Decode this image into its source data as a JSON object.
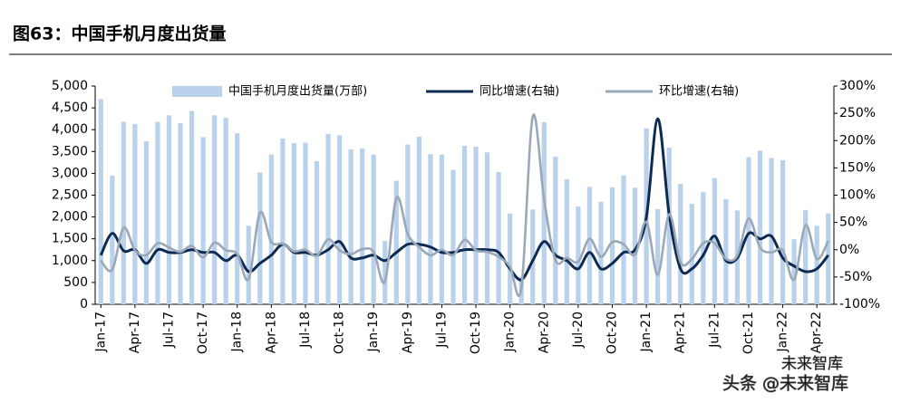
{
  "chart_data": {
    "type": "bar_line",
    "title": "图63：中国手机月度出货量",
    "categories": [
      "Jan-17",
      null,
      null,
      "Apr-17",
      null,
      null,
      "Jul-17",
      null,
      null,
      "Oct-17",
      null,
      null,
      "Jan-18",
      null,
      null,
      "Apr-18",
      null,
      null,
      "Jul-18",
      null,
      null,
      "Oct-18",
      null,
      null,
      "Jan-19",
      null,
      null,
      "Apr-19",
      null,
      null,
      "Jul-19",
      null,
      null,
      "Oct-19",
      null,
      null,
      "Jan-20",
      null,
      null,
      "Apr-20",
      null,
      null,
      "Jul-20",
      null,
      null,
      "Oct-20",
      null,
      null,
      "Jan-21",
      null,
      null,
      "Apr-21",
      null,
      null,
      "Jul-21",
      null,
      null,
      "Oct-21",
      null,
      null,
      "Jan-22",
      null,
      null,
      "Apr-22",
      null
    ],
    "series": [
      {
        "name": "中国手机月度出货量(万部)",
        "kind": "bar",
        "color": "#b9d1ea",
        "values": [
          4700,
          2950,
          4180,
          4130,
          3730,
          4180,
          4330,
          4150,
          4430,
          3830,
          4330,
          4270,
          3920,
          1800,
          3020,
          3430,
          3800,
          3690,
          3700,
          3280,
          3900,
          3870,
          3550,
          3570,
          3430,
          1450,
          2830,
          3660,
          3840,
          3440,
          3430,
          3080,
          3630,
          3610,
          3480,
          3030,
          2080,
          630,
          2170,
          4170,
          3380,
          2860,
          2240,
          2690,
          2350,
          2680,
          2950,
          2670,
          4030,
          2180,
          3590,
          2760,
          2300,
          2570,
          2890,
          2410,
          2150,
          3370,
          3520,
          3350,
          3300,
          1490,
          2160,
          1800,
          2080
        ]
      },
      {
        "name": "同比增速(右轴)",
        "kind": "line",
        "axis": "y2",
        "color": "#0d2b52",
        "values": [
          -10,
          30,
          -2,
          0,
          -25,
          0,
          -5,
          -5,
          0,
          -5,
          -5,
          -20,
          -10,
          -40,
          -25,
          -10,
          10,
          -5,
          -5,
          -10,
          0,
          15,
          -15,
          -15,
          -10,
          -20,
          -5,
          10,
          10,
          5,
          -5,
          -5,
          0,
          0,
          0,
          -5,
          -35,
          -55,
          -20,
          15,
          -10,
          -20,
          -35,
          -5,
          -35,
          -25,
          -5,
          0,
          60,
          240,
          65,
          -35,
          -35,
          -10,
          25,
          -20,
          -15,
          30,
          20,
          25,
          -15,
          -30,
          -40,
          -35,
          -10
        ]
      },
      {
        "name": "环比增速(右轴)",
        "kind": "line",
        "axis": "y2",
        "color": "#9aa8b8",
        "values": [
          -20,
          -37,
          40,
          -1,
          -10,
          12,
          4,
          -4,
          7,
          -14,
          13,
          -1,
          -8,
          -54,
          68,
          14,
          11,
          -3,
          0,
          -11,
          19,
          -1,
          -8,
          1,
          -4,
          -58,
          95,
          29,
          5,
          -10,
          0,
          -10,
          18,
          -1,
          -4,
          -13,
          -31,
          -70,
          244,
          92,
          -19,
          -15,
          -22,
          20,
          -13,
          14,
          10,
          -9,
          51,
          -46,
          65,
          -23,
          -17,
          12,
          12,
          -17,
          -11,
          57,
          4,
          -5,
          -1,
          -55,
          45,
          -17,
          16
        ]
      }
    ],
    "ylim": [
      0,
      5000
    ],
    "yticks": [
      0,
      500,
      {
        "value": 1000,
        "label": "1,000"
      },
      {
        "value": 1500,
        "label": "1,500"
      },
      {
        "value": 2000,
        "label": "2,000"
      },
      {
        "value": 2500,
        "label": "2,500"
      },
      {
        "value": 3000,
        "label": "3,000"
      },
      {
        "value": 3500,
        "label": "3,500"
      },
      {
        "value": 4000,
        "label": "4,000"
      },
      {
        "value": 4500,
        "label": "4,500"
      },
      {
        "value": 5000,
        "label": "5,000"
      }
    ],
    "y2lim": [
      -100,
      300
    ],
    "y2ticks": [
      {
        "value": -100,
        "label": "-100%"
      },
      {
        "value": -50,
        "label": "-50%"
      },
      {
        "value": 0,
        "label": "0%"
      },
      {
        "value": 50,
        "label": "50%"
      },
      {
        "value": 100,
        "label": "100%"
      },
      {
        "value": 150,
        "label": "150%"
      },
      {
        "value": 200,
        "label": "200%"
      },
      {
        "value": 250,
        "label": "250%"
      },
      {
        "value": 300,
        "label": "300%"
      }
    ],
    "legend": "top",
    "watermark": [
      "未来智库",
      "头条 @未来智库"
    ]
  }
}
